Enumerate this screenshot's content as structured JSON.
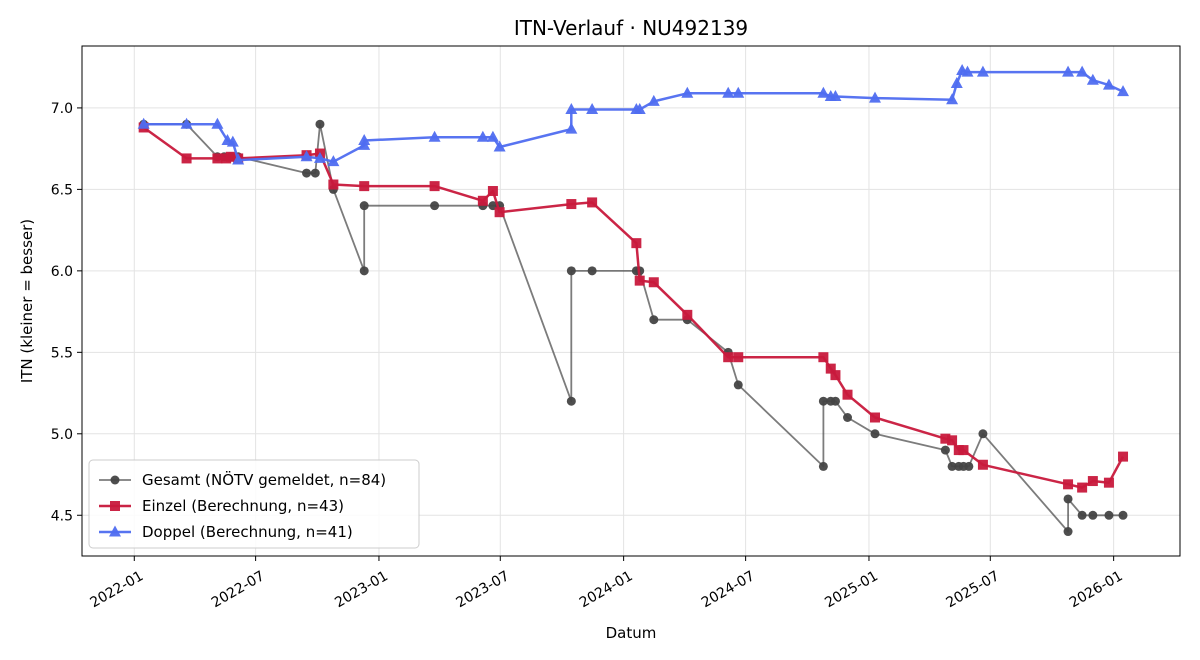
{
  "chart_data": {
    "type": "line",
    "title": "ITN-Verlauf · NU492139",
    "xlabel": "Datum",
    "ylabel": "ITN  (kleiner = besser)",
    "x_axis": "date",
    "xlim": [
      "2021-10-15",
      "2026-04-10"
    ],
    "ylim": [
      4.25,
      7.38
    ],
    "x_ticks": [
      "2022-01",
      "2022-07",
      "2023-01",
      "2023-07",
      "2024-01",
      "2024-07",
      "2025-01",
      "2025-07",
      "2026-01"
    ],
    "y_ticks": [
      4.5,
      5.0,
      5.5,
      6.0,
      6.5,
      7.0
    ],
    "grid": true,
    "legend_position": "lower-left",
    "series": [
      {
        "name": "Gesamt (NÖTV gemeldet, n=84)",
        "color": "#444444",
        "marker": "circle",
        "points": [
          [
            "2022-01-15",
            6.9
          ],
          [
            "2022-03-20",
            6.9
          ],
          [
            "2022-05-05",
            6.7
          ],
          [
            "2022-05-15",
            6.7
          ],
          [
            "2022-05-25",
            6.7
          ],
          [
            "2022-06-05",
            6.7
          ],
          [
            "2022-09-15",
            6.6
          ],
          [
            "2022-09-28",
            6.6
          ],
          [
            "2022-10-05",
            6.9
          ],
          [
            "2022-10-25",
            6.5
          ],
          [
            "2022-12-10",
            6.0
          ],
          [
            "2022-12-10",
            6.4
          ],
          [
            "2023-03-25",
            6.4
          ],
          [
            "2023-06-05",
            6.4
          ],
          [
            "2023-06-20",
            6.4
          ],
          [
            "2023-06-30",
            6.4
          ],
          [
            "2023-10-15",
            5.2
          ],
          [
            "2023-10-15",
            6.0
          ],
          [
            "2023-11-15",
            6.0
          ],
          [
            "2024-01-20",
            6.0
          ],
          [
            "2024-01-25",
            6.0
          ],
          [
            "2024-02-15",
            5.7
          ],
          [
            "2024-04-05",
            5.7
          ],
          [
            "2024-06-05",
            5.5
          ],
          [
            "2024-06-20",
            5.3
          ],
          [
            "2024-10-25",
            4.8
          ],
          [
            "2024-10-25",
            5.2
          ],
          [
            "2024-11-05",
            5.2
          ],
          [
            "2024-11-12",
            5.2
          ],
          [
            "2024-11-30",
            5.1
          ],
          [
            "2025-01-10",
            5.0
          ],
          [
            "2025-04-25",
            4.9
          ],
          [
            "2025-05-05",
            4.8
          ],
          [
            "2025-05-15",
            4.8
          ],
          [
            "2025-05-22",
            4.8
          ],
          [
            "2025-05-30",
            4.8
          ],
          [
            "2025-06-20",
            5.0
          ],
          [
            "2025-10-25",
            4.4
          ],
          [
            "2025-10-25",
            4.6
          ],
          [
            "2025-11-15",
            4.5
          ],
          [
            "2025-12-01",
            4.5
          ],
          [
            "2025-12-25",
            4.5
          ],
          [
            "2026-01-15",
            4.5
          ]
        ]
      },
      {
        "name": "Einzel (Berechnung, n=43)",
        "color": "#c8193c",
        "marker": "square",
        "points": [
          [
            "2022-01-15",
            6.88
          ],
          [
            "2022-03-20",
            6.69
          ],
          [
            "2022-05-05",
            6.69
          ],
          [
            "2022-05-18",
            6.69
          ],
          [
            "2022-05-25",
            6.7
          ],
          [
            "2022-06-05",
            6.69
          ],
          [
            "2022-09-15",
            6.71
          ],
          [
            "2022-10-05",
            6.72
          ],
          [
            "2022-10-25",
            6.53
          ],
          [
            "2022-12-10",
            6.52
          ],
          [
            "2023-03-25",
            6.52
          ],
          [
            "2023-06-05",
            6.43
          ],
          [
            "2023-06-20",
            6.49
          ],
          [
            "2023-06-30",
            6.36
          ],
          [
            "2023-10-15",
            6.41
          ],
          [
            "2023-11-15",
            6.42
          ],
          [
            "2024-01-20",
            6.17
          ],
          [
            "2024-01-25",
            5.94
          ],
          [
            "2024-02-15",
            5.93
          ],
          [
            "2024-04-05",
            5.73
          ],
          [
            "2024-06-05",
            5.47
          ],
          [
            "2024-06-20",
            5.47
          ],
          [
            "2024-10-25",
            5.47
          ],
          [
            "2024-11-05",
            5.4
          ],
          [
            "2024-11-12",
            5.36
          ],
          [
            "2024-11-30",
            5.24
          ],
          [
            "2025-01-10",
            5.1
          ],
          [
            "2025-04-25",
            4.97
          ],
          [
            "2025-05-05",
            4.96
          ],
          [
            "2025-05-15",
            4.9
          ],
          [
            "2025-05-22",
            4.9
          ],
          [
            "2025-06-20",
            4.81
          ],
          [
            "2025-10-25",
            4.69
          ],
          [
            "2025-11-15",
            4.67
          ],
          [
            "2025-12-01",
            4.71
          ],
          [
            "2025-12-25",
            4.7
          ],
          [
            "2026-01-15",
            4.86
          ]
        ]
      },
      {
        "name": "Doppel (Berechnung, n=41)",
        "color": "#4f6df0",
        "marker": "triangle",
        "points": [
          [
            "2022-01-15",
            6.9
          ],
          [
            "2022-03-20",
            6.9
          ],
          [
            "2022-05-05",
            6.9
          ],
          [
            "2022-05-20",
            6.8
          ],
          [
            "2022-05-28",
            6.79
          ],
          [
            "2022-06-05",
            6.68
          ],
          [
            "2022-09-15",
            6.7
          ],
          [
            "2022-10-05",
            6.69
          ],
          [
            "2022-10-25",
            6.67
          ],
          [
            "2022-12-10",
            6.77
          ],
          [
            "2022-12-10",
            6.8
          ],
          [
            "2023-03-25",
            6.82
          ],
          [
            "2023-06-05",
            6.82
          ],
          [
            "2023-06-20",
            6.82
          ],
          [
            "2023-06-30",
            6.76
          ],
          [
            "2023-10-15",
            6.87
          ],
          [
            "2023-10-15",
            6.99
          ],
          [
            "2023-11-15",
            6.99
          ],
          [
            "2024-01-20",
            6.99
          ],
          [
            "2024-01-25",
            6.99
          ],
          [
            "2024-02-15",
            7.04
          ],
          [
            "2024-04-05",
            7.09
          ],
          [
            "2024-06-05",
            7.09
          ],
          [
            "2024-06-20",
            7.09
          ],
          [
            "2024-10-25",
            7.09
          ],
          [
            "2024-11-05",
            7.07
          ],
          [
            "2024-11-12",
            7.07
          ],
          [
            "2025-01-10",
            7.06
          ],
          [
            "2025-05-05",
            7.05
          ],
          [
            "2025-05-12",
            7.15
          ],
          [
            "2025-05-20",
            7.23
          ],
          [
            "2025-05-28",
            7.22
          ],
          [
            "2025-06-20",
            7.22
          ],
          [
            "2025-10-25",
            7.22
          ],
          [
            "2025-11-15",
            7.22
          ],
          [
            "2025-12-01",
            7.17
          ],
          [
            "2025-12-25",
            7.14
          ],
          [
            "2026-01-15",
            7.1
          ]
        ]
      }
    ]
  }
}
